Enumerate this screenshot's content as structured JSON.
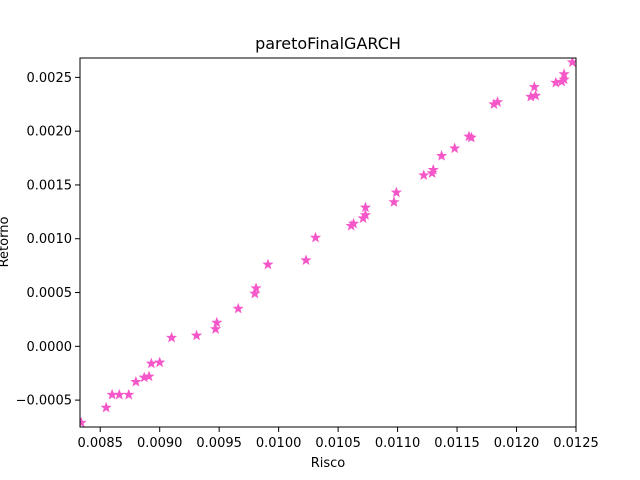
{
  "chart_data": {
    "type": "scatter",
    "title": "paretoFinalGARCH",
    "xlabel": "Risco",
    "ylabel": "Retorno",
    "xlim": [
      0.00833,
      0.0125
    ],
    "ylim": [
      -0.00075,
      0.00268
    ],
    "grid": false,
    "marker": "star",
    "color": "#f557c9",
    "xticks": [
      0.0085,
      0.009,
      0.0095,
      0.01,
      0.0105,
      0.011,
      0.0115,
      0.012,
      0.0125
    ],
    "xtick_labels": [
      "0.0085",
      "0.0090",
      "0.0095",
      "0.0100",
      "0.0105",
      "0.0110",
      "0.0115",
      "0.0120",
      "0.0125"
    ],
    "yticks": [
      -0.0005,
      0.0,
      0.0005,
      0.001,
      0.0015,
      0.002,
      0.0025
    ],
    "ytick_labels": [
      "−0.0005",
      "0.0000",
      "0.0005",
      "0.0010",
      "0.0015",
      "0.0020",
      "0.0025"
    ],
    "series": [
      {
        "points": [
          [
            0.00834,
            -0.00071
          ],
          [
            0.00855,
            -0.00057
          ],
          [
            0.0086,
            -0.00045
          ],
          [
            0.00866,
            -0.00045
          ],
          [
            0.00874,
            -0.00045
          ],
          [
            0.0088,
            -0.00033
          ],
          [
            0.00887,
            -0.00029
          ],
          [
            0.00891,
            -0.00028
          ],
          [
            0.00893,
            -0.00016
          ],
          [
            0.009,
            -0.00015
          ],
          [
            0.0091,
            8e-05
          ],
          [
            0.00931,
            0.0001
          ],
          [
            0.00947,
            0.00016
          ],
          [
            0.00948,
            0.00022
          ],
          [
            0.00966,
            0.00035
          ],
          [
            0.0098,
            0.00049
          ],
          [
            0.00981,
            0.00054
          ],
          [
            0.00991,
            0.00076
          ],
          [
            0.01023,
            0.0008
          ],
          [
            0.01031,
            0.00101
          ],
          [
            0.01061,
            0.00112
          ],
          [
            0.01063,
            0.00114
          ],
          [
            0.01071,
            0.00119
          ],
          [
            0.01073,
            0.00122
          ],
          [
            0.01073,
            0.00129
          ],
          [
            0.01097,
            0.00134
          ],
          [
            0.01099,
            0.00143
          ],
          [
            0.01122,
            0.00159
          ],
          [
            0.01129,
            0.00161
          ],
          [
            0.0113,
            0.00164
          ],
          [
            0.01137,
            0.00177
          ],
          [
            0.01148,
            0.00184
          ],
          [
            0.0116,
            0.00195
          ],
          [
            0.01162,
            0.00194
          ],
          [
            0.01181,
            0.00225
          ],
          [
            0.01184,
            0.00227
          ],
          [
            0.01212,
            0.00232
          ],
          [
            0.01216,
            0.00233
          ],
          [
            0.01215,
            0.00241
          ],
          [
            0.01233,
            0.00245
          ],
          [
            0.01238,
            0.00246
          ],
          [
            0.0124,
            0.00248
          ],
          [
            0.0124,
            0.00253
          ],
          [
            0.01247,
            0.00264
          ]
        ]
      }
    ]
  }
}
